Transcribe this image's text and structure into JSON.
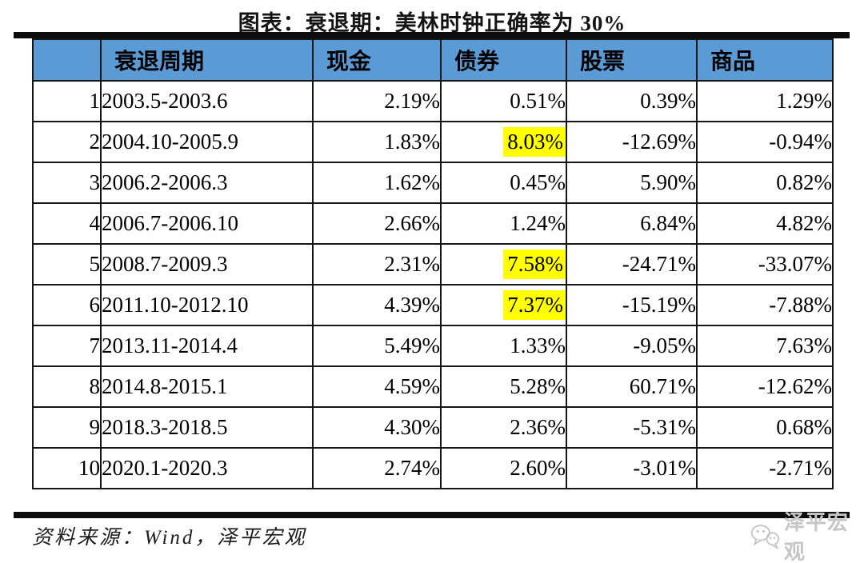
{
  "chart_data": {
    "type": "table",
    "title": "图表：衰退期：美林时钟正确率为 30%",
    "columns": [
      "",
      "衰退周期",
      "现金",
      "债券",
      "股票",
      "商品"
    ],
    "rows": [
      {
        "num": "1",
        "period": "2003.5-2003.6",
        "cash": "2.19%",
        "bond": "0.51%",
        "stock": "0.39%",
        "commodity": "1.29%"
      },
      {
        "num": "2",
        "period": "2004.10-2005.9",
        "cash": "1.83%",
        "bond": "8.03%",
        "stock": "-12.69%",
        "commodity": "-0.94%"
      },
      {
        "num": "3",
        "period": "2006.2-2006.3",
        "cash": "1.62%",
        "bond": "0.45%",
        "stock": "5.90%",
        "commodity": "0.82%"
      },
      {
        "num": "4",
        "period": "2006.7-2006.10",
        "cash": "2.66%",
        "bond": "1.24%",
        "stock": "6.84%",
        "commodity": "4.82%"
      },
      {
        "num": "5",
        "period": "2008.7-2009.3",
        "cash": "2.31%",
        "bond": "7.58%",
        "stock": "-24.71%",
        "commodity": "-33.07%"
      },
      {
        "num": "6",
        "period": "2011.10-2012.10",
        "cash": "4.39%",
        "bond": "7.37%",
        "stock": "-15.19%",
        "commodity": "-7.88%"
      },
      {
        "num": "7",
        "period": "2013.11-2014.4",
        "cash": "5.49%",
        "bond": "1.33%",
        "stock": "-9.05%",
        "commodity": "7.63%"
      },
      {
        "num": "8",
        "period": "2014.8-2015.1",
        "cash": "4.59%",
        "bond": "5.28%",
        "stock": "60.71%",
        "commodity": "-12.62%"
      },
      {
        "num": "9",
        "period": "2018.3-2018.5",
        "cash": "4.30%",
        "bond": "2.36%",
        "stock": "-5.31%",
        "commodity": "0.68%"
      },
      {
        "num": "10",
        "period": "2020.1-2020.3",
        "cash": "2.74%",
        "bond": "2.60%",
        "stock": "-3.01%",
        "commodity": "-2.71%"
      }
    ],
    "highlighted_bond_rows": [
      1,
      4,
      5
    ],
    "legend_position": "none",
    "grid": true
  },
  "source_note": "资料来源：Wind，泽平宏观",
  "watermark": {
    "label": "泽平宏观",
    "icon": "wechat-chat-bubbles-icon"
  },
  "colors": {
    "header_bg": "#5B9BD5",
    "highlight": "#FFFF00",
    "rule": "#0d0d0d",
    "watermark": "#c6c6c6"
  }
}
